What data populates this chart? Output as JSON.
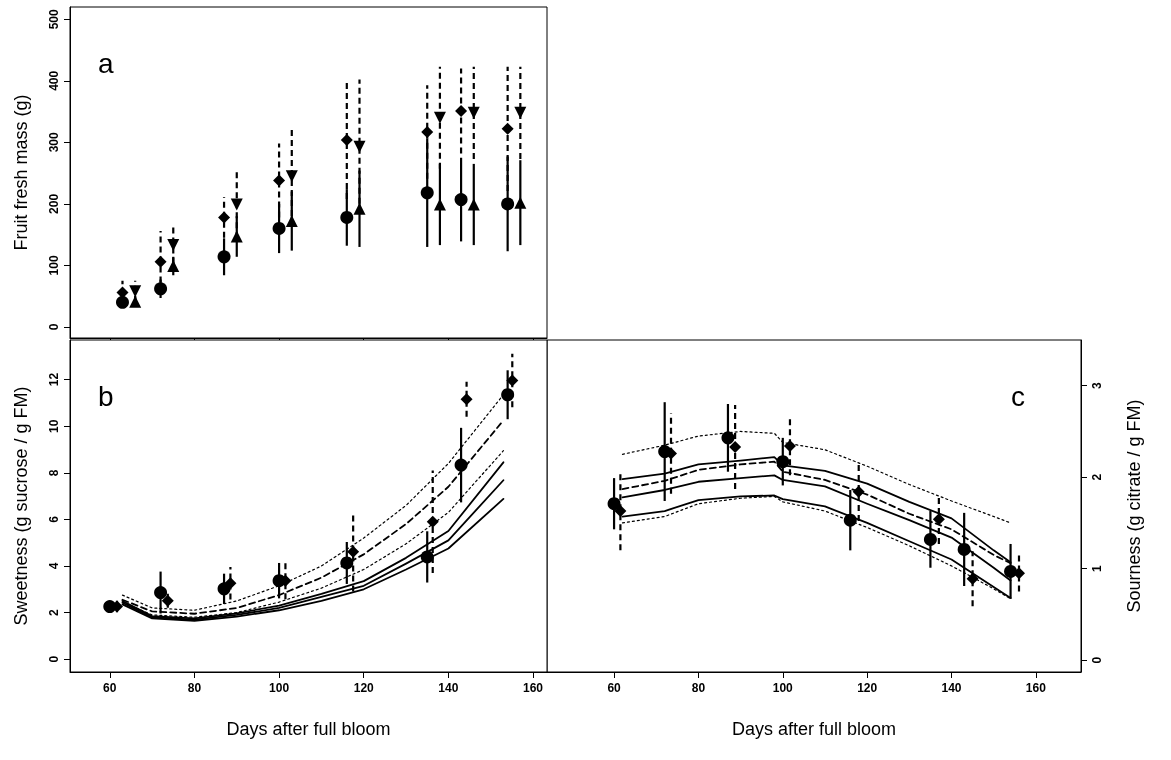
{
  "chart_data": [
    {
      "type": "scatter",
      "ylabel": "Fruit fresh mass (g)",
      "annotations": [
        "a"
      ],
      "xlim": [
        50.6,
        163.3
      ],
      "xticks": [
        {
          "value": 60,
          "label": null
        },
        {
          "value": 80,
          "label": null
        },
        {
          "value": 100,
          "label": null
        },
        {
          "value": 120,
          "label": null
        },
        {
          "value": 140,
          "label": null
        },
        {
          "value": 160,
          "label": null
        }
      ],
      "ylim": [
        -18,
        520
      ],
      "yticks": [
        0,
        100,
        200,
        300,
        400,
        500
      ],
      "tick_labels": "y",
      "grid": false,
      "series": [
        {
          "marker": "circle",
          "line_style": "solid",
          "color": "#000000",
          "x": [
            63,
            72,
            87,
            100,
            116,
            135,
            143,
            154
          ],
          "values": [
            40,
            62,
            114,
            160,
            178,
            218,
            207,
            200
          ],
          "errors": [
            8,
            15,
            30,
            40,
            46,
            88,
            68,
            77
          ]
        },
        {
          "marker": "diamond",
          "line_style": "dashed",
          "color": "#000000",
          "x": [
            63,
            72,
            87,
            100,
            116,
            135,
            143,
            154
          ],
          "values": [
            56,
            106,
            178,
            238,
            304,
            317,
            351,
            322
          ],
          "errors": [
            19,
            50,
            33,
            60,
            96,
            76,
            69,
            101
          ]
        },
        {
          "marker": "triangle",
          "line_style": "solid",
          "color": "#000000",
          "x": [
            66,
            75,
            90,
            103,
            119,
            138,
            146,
            157
          ],
          "values": [
            41,
            99,
            147,
            172,
            192,
            199,
            199,
            202
          ],
          "errors": [
            8,
            15,
            33,
            48,
            62,
            66,
            66,
            69
          ]
        },
        {
          "marker": "triangle-down",
          "line_style": "dashed",
          "color": "#000000",
          "x": [
            66,
            75,
            90,
            103,
            119,
            138,
            146,
            157
          ],
          "values": [
            58,
            133,
            199,
            245,
            293,
            340,
            348,
            348
          ],
          "errors": [
            17,
            30,
            55,
            81,
            109,
            83,
            75,
            75
          ]
        }
      ]
    },
    {
      "type": "scatter",
      "xlabel": "Days after full bloom",
      "ylabel": "Sweetness (g sucrose / g FM)",
      "annotations": [
        "b"
      ],
      "xlim": [
        50.6,
        163.3
      ],
      "xticks": [
        60,
        80,
        100,
        120,
        140,
        160
      ],
      "ylim": [
        -0.55,
        13.7
      ],
      "yticks": [
        0,
        2,
        4,
        6,
        8,
        10,
        12
      ],
      "grid": false,
      "series": [
        {
          "type": "line",
          "marker": "none",
          "line_style": "solid",
          "color": "#000000",
          "x": [
            63,
            70,
            80,
            90,
            100,
            110,
            120,
            130,
            140,
            153
          ],
          "values": [
            2.43,
            1.8,
            1.7,
            1.9,
            2.2,
            2.67,
            3.15,
            4.1,
            5.1,
            7.68
          ]
        },
        {
          "type": "line",
          "marker": "none",
          "line_style": "solid",
          "color": "#000000",
          "x": [
            63,
            70,
            80,
            90,
            100,
            110,
            120,
            130,
            140,
            153
          ],
          "values": [
            2.5,
            1.85,
            1.75,
            1.97,
            2.3,
            2.8,
            3.35,
            4.35,
            5.5,
            8.45
          ]
        },
        {
          "type": "line",
          "marker": "none",
          "line_style": "solid",
          "color": "#000000",
          "x": [
            63,
            70,
            80,
            90,
            100,
            110,
            120,
            130,
            140,
            153
          ],
          "values": [
            2.35,
            1.75,
            1.65,
            1.83,
            2.1,
            2.5,
            3.0,
            3.85,
            4.75,
            6.88
          ]
        },
        {
          "type": "line",
          "marker": "none",
          "line_style": "dashed",
          "color": "#000000",
          "x": [
            63,
            70,
            80,
            90,
            100,
            110,
            120,
            130,
            140,
            153
          ],
          "values": [
            2.55,
            2.05,
            1.95,
            2.2,
            2.75,
            3.5,
            4.5,
            5.8,
            7.4,
            10.25
          ]
        },
        {
          "type": "line",
          "marker": "none",
          "line_style": "dotted",
          "color": "#000000",
          "x": [
            63,
            70,
            80,
            90,
            100,
            110,
            120,
            130,
            140,
            153
          ],
          "values": [
            2.75,
            2.2,
            2.1,
            2.5,
            3.15,
            4.0,
            5.2,
            6.6,
            8.4,
            11.35
          ]
        },
        {
          "type": "line",
          "marker": "none",
          "line_style": "dotted",
          "color": "#000000",
          "x": [
            63,
            70,
            80,
            90,
            100,
            110,
            120,
            130,
            140,
            153
          ],
          "values": [
            2.45,
            1.9,
            1.8,
            2.0,
            2.45,
            3.05,
            3.85,
            4.95,
            6.3,
            8.95
          ]
        },
        {
          "marker": "circle",
          "line_style": "solid",
          "color": "#000000",
          "x": [
            60,
            72,
            87,
            100,
            116,
            135,
            143,
            154
          ],
          "values": [
            2.26,
            2.86,
            3.02,
            3.37,
            4.13,
            4.39,
            8.33,
            11.35
          ],
          "errors": [
            0.2,
            0.9,
            0.65,
            0.76,
            0.9,
            1.1,
            1.6,
            1.05
          ]
        },
        {
          "marker": "diamond",
          "line_style": "dashed",
          "color": "#000000",
          "x": [
            61.7,
            73.7,
            88.5,
            101.5,
            117.5,
            136.3,
            144.3,
            155.1
          ],
          "values": [
            2.26,
            2.51,
            3.26,
            3.37,
            4.61,
            5.9,
            11.16,
            11.96
          ],
          "errors": [
            0.25,
            0.3,
            0.7,
            0.8,
            1.7,
            2.2,
            0.75,
            1.15
          ]
        }
      ]
    },
    {
      "type": "scatter",
      "xlabel": "Days after full bloom",
      "y2label": "Sourness (g citrate / g FM)",
      "annotations": [
        "c"
      ],
      "xlim": [
        44.1,
        170.7
      ],
      "xticks": [
        60,
        80,
        100,
        120,
        140,
        160
      ],
      "y2lim": [
        -0.13,
        3.5
      ],
      "y2ticks": [
        0,
        1,
        2,
        3
      ],
      "grid": false,
      "series": [
        {
          "type": "line",
          "axis": "y2",
          "marker": "none",
          "line_style": "solid",
          "color": "#000000",
          "x": [
            62,
            72,
            80,
            90,
            98,
            100,
            110,
            120,
            130,
            140,
            150,
            154
          ],
          "values": [
            1.78,
            1.86,
            1.95,
            1.99,
            2.02,
            1.97,
            1.9,
            1.71,
            1.53,
            1.34,
            1.01,
            0.87
          ]
        },
        {
          "type": "line",
          "axis": "y2",
          "marker": "none",
          "line_style": "solid",
          "color": "#000000",
          "x": [
            62,
            72,
            80,
            90,
            98,
            100,
            110,
            120,
            130,
            140,
            150,
            154
          ],
          "values": [
            1.98,
            2.04,
            2.14,
            2.18,
            2.22,
            2.13,
            2.07,
            1.93,
            1.73,
            1.55,
            1.2,
            1.07
          ]
        },
        {
          "type": "line",
          "axis": "y2",
          "marker": "none",
          "line_style": "solid",
          "color": "#000000",
          "x": [
            62,
            72,
            80,
            90,
            98,
            100,
            110,
            120,
            130,
            140,
            150,
            154
          ],
          "values": [
            1.57,
            1.63,
            1.75,
            1.79,
            1.8,
            1.76,
            1.68,
            1.5,
            1.3,
            1.1,
            0.8,
            0.68
          ]
        },
        {
          "type": "line",
          "axis": "y2",
          "marker": "none",
          "line_style": "dashed",
          "color": "#000000",
          "x": [
            62,
            72,
            80,
            90,
            98,
            100,
            110,
            120,
            130,
            140,
            150,
            154
          ],
          "values": [
            1.87,
            1.96,
            2.08,
            2.14,
            2.17,
            2.06,
            1.97,
            1.81,
            1.6,
            1.43,
            1.15,
            1.06
          ]
        },
        {
          "type": "line",
          "axis": "y2",
          "marker": "none",
          "line_style": "dotted",
          "color": "#000000",
          "x": [
            62,
            72,
            80,
            90,
            98,
            100,
            110,
            120,
            130,
            140,
            150,
            154
          ],
          "values": [
            2.25,
            2.35,
            2.45,
            2.5,
            2.48,
            2.38,
            2.3,
            2.12,
            1.92,
            1.74,
            1.57,
            1.5
          ]
        },
        {
          "type": "line",
          "axis": "y2",
          "marker": "none",
          "line_style": "dotted",
          "color": "#000000",
          "x": [
            62,
            72,
            80,
            90,
            98,
            100,
            110,
            120,
            130,
            140,
            150,
            154
          ],
          "values": [
            1.5,
            1.57,
            1.71,
            1.77,
            1.79,
            1.73,
            1.63,
            1.45,
            1.25,
            1.03,
            0.78,
            0.67
          ]
        },
        {
          "axis": "y2",
          "marker": "circle",
          "line_style": "solid",
          "color": "#000000",
          "x": [
            60,
            72,
            87,
            100,
            116,
            135,
            143,
            154
          ],
          "values": [
            1.71,
            2.28,
            2.43,
            2.17,
            1.53,
            1.32,
            1.21,
            0.97
          ],
          "errors": [
            0.28,
            0.54,
            0.37,
            0.26,
            0.33,
            0.31,
            0.4,
            0.3
          ]
        },
        {
          "axis": "y2",
          "marker": "diamond",
          "line_style": "dashed",
          "color": "#000000",
          "x": [
            61.5,
            73.5,
            88.7,
            101.7,
            118,
            137,
            145,
            156
          ],
          "values": [
            1.63,
            2.26,
            2.33,
            2.34,
            1.84,
            1.54,
            0.89,
            0.95
          ],
          "errors": [
            0.43,
            0.44,
            0.46,
            0.32,
            0.32,
            0.27,
            0.3,
            0.2
          ]
        }
      ]
    }
  ]
}
